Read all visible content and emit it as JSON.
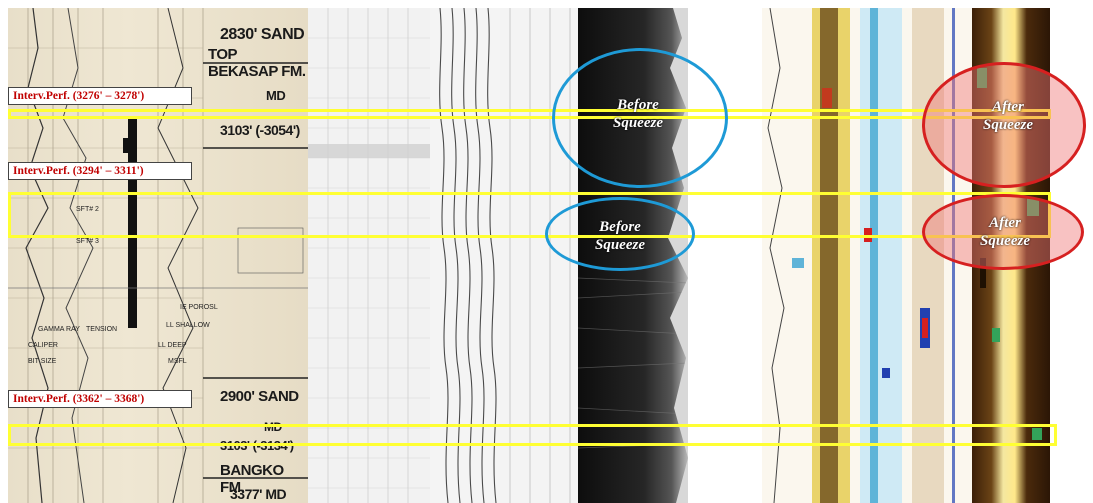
{
  "log_annotations": {
    "sand_2830": "2830' SAND",
    "top_bekasap": "TOP BEKASAP FM.",
    "md_1": "MD",
    "depth_1": "3103' (-3054')",
    "sand_2900": "2900' SAND",
    "md_2": "MD",
    "depth_2": "3103' (-3134')",
    "bangko": "BANGKO FM.",
    "depth_3": "3377' MD",
    "sft2": "SFT# 2",
    "sft3": "SFT# 3",
    "caliper": "CALIPER",
    "gamma": "GAMMA RAY",
    "tension": "TENSION",
    "bitsize": "BIT SIZE",
    "ll_shallow": "LL SHALLOW",
    "ll_deep": "LL DEEP",
    "msfl": "MSFL",
    "porosity": "IE POROSL"
  },
  "intervals": [
    {
      "label": "Interv.Perf. (3276' – 3278')"
    },
    {
      "label": "Interv.Perf. (3294' – 3311')"
    },
    {
      "label": "Interv.Perf. (3362' – 3368')"
    }
  ],
  "ovals": {
    "before_1": "Before Squeeze",
    "before_2": "Before Squeeze",
    "after_1": "After Squeeze",
    "after_2": "After Squeeze"
  },
  "colors": {
    "highlight": "#ffff33",
    "before_outline": "#1e9ad6",
    "after_outline": "#d62020",
    "label_text": "#c00000"
  }
}
